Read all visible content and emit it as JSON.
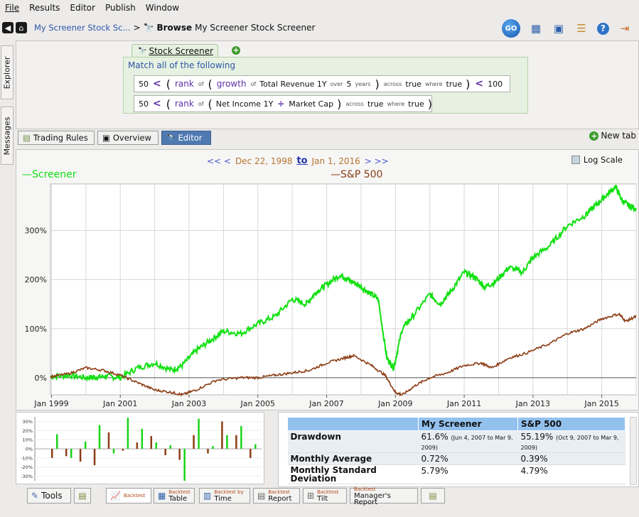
{
  "menu": {
    "items": [
      "File",
      "Results",
      "Editor",
      "Publish",
      "Window"
    ]
  },
  "nav": {
    "breadcrumb_link": "My Screener Stock Sc...",
    "separator": ">",
    "action": "Browse",
    "title": "My Screener Stock Screener",
    "go_label": "GO"
  },
  "sidebar": {
    "explorer": "Explorer",
    "messages": "Messages"
  },
  "editor": {
    "tab_label": "Stock Screener",
    "match_label": "Match all of the following",
    "rule1": {
      "left": "50",
      "op": "<",
      "fn1": "rank",
      "of1": "of",
      "fn2": "growth",
      "of2": "of",
      "metric": "Total Revenue 1Y",
      "over": "over",
      "years_val": "5",
      "years": "years",
      "across": "across",
      "across_val": "true",
      "where": "where",
      "where_val": "true",
      "op2": "<",
      "right": "100"
    },
    "rule2": {
      "left": "50",
      "op": "<",
      "fn1": "rank",
      "of1": "of",
      "metric1": "Net Income 1Y",
      "div": "÷",
      "metric2": "Market Cap",
      "across": "across",
      "across_val": "true",
      "where": "where",
      "where_val": "true"
    }
  },
  "view_tabs": {
    "trading_rules": "Trading Rules",
    "overview": "Overview",
    "editor": "Editor",
    "new_tab": "New tab"
  },
  "chart_header": {
    "nav_left": "<< <",
    "start_date": "Dec 22, 1998",
    "to": "to",
    "end_date": "Jan 1, 2016",
    "nav_right": "> >>",
    "log_scale": "Log Scale"
  },
  "chart_data": {
    "type": "line",
    "x_ticks": [
      "Jan 1999",
      "Jan 2001",
      "Jan 2003",
      "Jan 2005",
      "Jan 2007",
      "Jan 2009",
      "Jan 2011",
      "Jan 2013",
      "Jan 2015"
    ],
    "y_ticks": [
      "0%",
      "100%",
      "200%",
      "300%"
    ],
    "ylim": [
      -35,
      395
    ],
    "xlim": [
      1998.97,
      2016.0
    ],
    "series": [
      {
        "name": "Screener",
        "color": "#10e010",
        "x": [
          1998.97,
          1999.5,
          2000.0,
          2000.3,
          2000.6,
          2001.0,
          2001.5,
          2002.0,
          2002.5,
          2002.8,
          2003.2,
          2003.6,
          2004.0,
          2004.5,
          2005.0,
          2005.5,
          2006.0,
          2006.4,
          2006.7,
          2007.0,
          2007.4,
          2007.6,
          2007.9,
          2008.2,
          2008.5,
          2008.75,
          2008.95,
          2009.2,
          2009.5,
          2010.0,
          2010.3,
          2010.6,
          2011.0,
          2011.3,
          2011.6,
          2011.9,
          2012.3,
          2012.7,
          2013.0,
          2013.5,
          2014.0,
          2014.5,
          2014.8,
          2015.1,
          2015.4,
          2015.6,
          2015.8,
          2016.0
        ],
        "y": [
          2,
          5,
          0,
          1,
          3,
          0,
          20,
          30,
          15,
          25,
          55,
          75,
          95,
          90,
          110,
          125,
          160,
          150,
          175,
          190,
          210,
          200,
          190,
          175,
          160,
          40,
          20,
          100,
          125,
          170,
          150,
          175,
          215,
          205,
          185,
          195,
          225,
          215,
          245,
          270,
          310,
          330,
          350,
          370,
          390,
          360,
          350,
          345
        ]
      },
      {
        "name": "S&P 500",
        "color": "#8b3d14",
        "x": [
          1998.97,
          1999.5,
          2000.0,
          2000.5,
          2001.0,
          2001.5,
          2002.0,
          2002.5,
          2002.8,
          2003.2,
          2003.8,
          2004.5,
          2005.0,
          2005.5,
          2006.0,
          2006.5,
          2007.0,
          2007.5,
          2007.8,
          2008.3,
          2008.7,
          2009.0,
          2009.2,
          2009.6,
          2010.0,
          2010.5,
          2011.0,
          2011.5,
          2011.8,
          2012.3,
          2012.8,
          2013.5,
          2014.0,
          2014.5,
          2015.0,
          2015.5,
          2015.7,
          2016.0
        ],
        "y": [
          2,
          8,
          20,
          15,
          5,
          -10,
          -25,
          -30,
          -35,
          -25,
          -5,
          0,
          0,
          5,
          10,
          15,
          30,
          40,
          45,
          25,
          5,
          -30,
          -35,
          -15,
          0,
          10,
          25,
          30,
          20,
          40,
          50,
          70,
          90,
          100,
          120,
          130,
          115,
          125
        ]
      }
    ],
    "grid": true,
    "legend_placement": "top"
  },
  "mini_chart": {
    "y_ticks": [
      "30%",
      "20%",
      "10%",
      "0%",
      "-10%",
      "-20%",
      "-30%"
    ],
    "bars": [
      {
        "s": 16,
        "c": -10
      },
      {
        "s": -10,
        "c": -8
      },
      {
        "s": 8,
        "c": -14
      },
      {
        "s": 26,
        "c": -18
      },
      {
        "s": -5,
        "c": 18
      },
      {
        "s": 34,
        "c": -2
      },
      {
        "s": 22,
        "c": 7
      },
      {
        "s": 7,
        "c": 14
      },
      {
        "s": 4,
        "c": -7
      },
      {
        "s": -35,
        "c": -12
      },
      {
        "s": 33,
        "c": 15
      },
      {
        "s": 3,
        "c": -5
      },
      {
        "s": 15,
        "c": 30
      },
      {
        "s": 25,
        "c": 15
      },
      {
        "s": 5,
        "c": -10
      }
    ]
  },
  "stats": {
    "headers": [
      "",
      "My Screener",
      "S&P 500"
    ],
    "rows": [
      {
        "label": "Drawdown",
        "a": "61.6%",
        "a_note": "(Jun 4, 2007 to Mar 9, 2009)",
        "b": "55.19%",
        "b_note": "(Oct 9, 2007 to Mar 9, 2009)"
      },
      {
        "label": "Monthly Average",
        "a": "0.72%",
        "b": "0.39%"
      },
      {
        "label": "Monthly Standard Deviation",
        "a": "5.79%",
        "b": "4.79%"
      }
    ]
  },
  "bottom_tabs": {
    "tools": "Tools",
    "backtest": "Backtest",
    "table_sup": "Backtest",
    "table": "Table",
    "time_sup": "Backtest by",
    "time": "Time",
    "report_sup": "Backtest",
    "report": "Report",
    "tilt_sup": "Backtest",
    "tilt": "Tilt",
    "mgr_sup": "Backtest",
    "mgr": "Manager's Report"
  },
  "colors": {
    "accent": "#2d55a8",
    "screener": "#10e010",
    "sp500": "#8b3d14",
    "header_blue": "#92c1ee"
  }
}
